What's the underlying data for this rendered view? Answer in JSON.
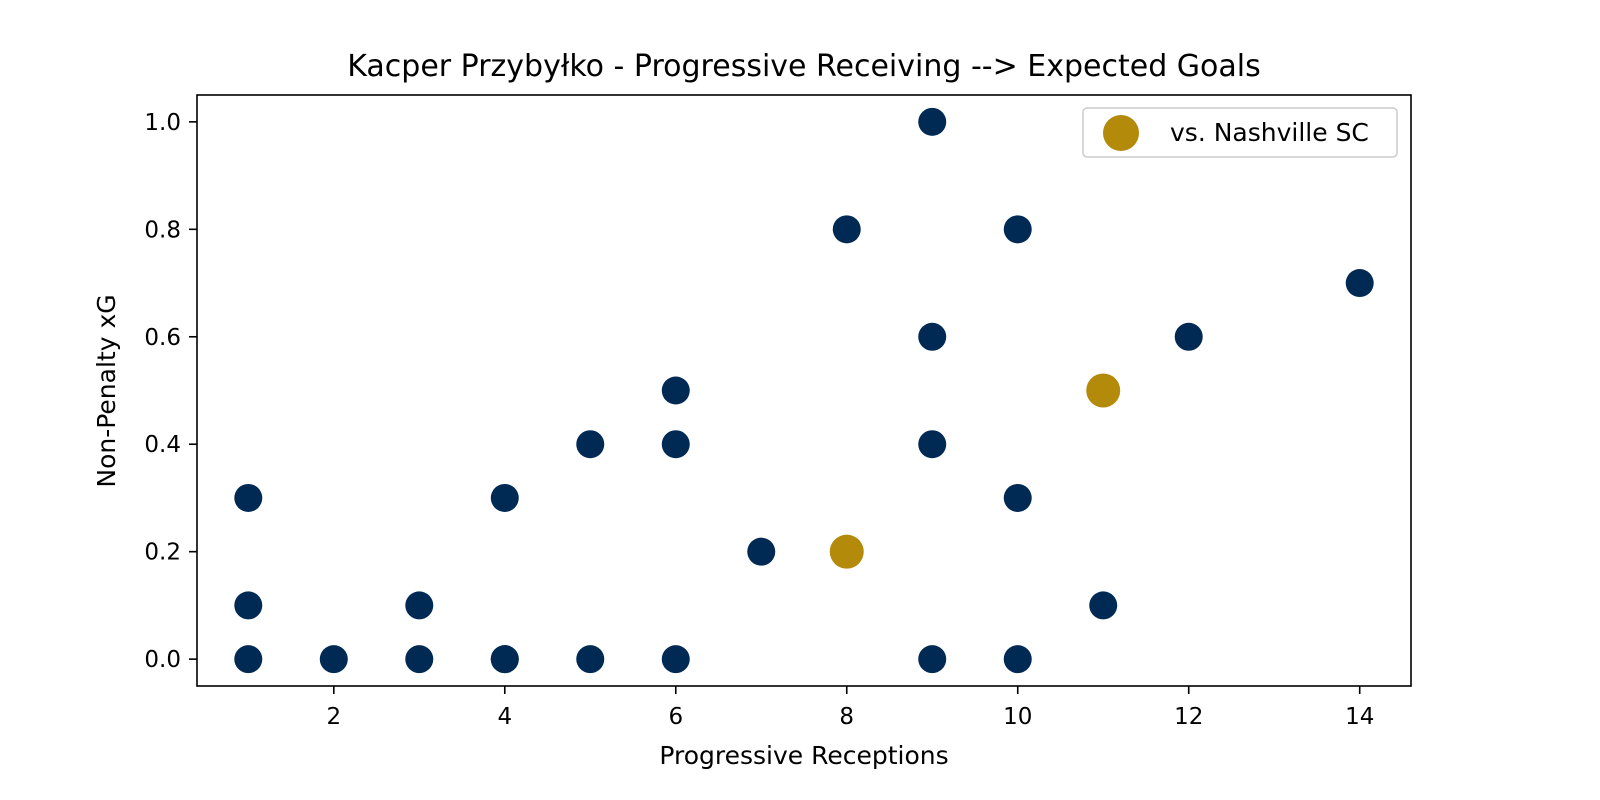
{
  "chart_data": {
    "type": "scatter",
    "title": "Kacper Przybyłko - Progressive Receiving --> Expected Goals",
    "xlabel": "Progressive Receptions",
    "ylabel": "Non-Penalty xG",
    "xlim": [
      0.4,
      14.6
    ],
    "ylim": [
      -0.05,
      1.05
    ],
    "xticks": [
      2,
      4,
      6,
      8,
      10,
      12,
      14
    ],
    "yticks": [
      0.0,
      0.2,
      0.4,
      0.6,
      0.8,
      1.0
    ],
    "xtick_labels": [
      "2",
      "4",
      "6",
      "8",
      "10",
      "12",
      "14"
    ],
    "ytick_labels": [
      "0.0",
      "0.2",
      "0.4",
      "0.6",
      "0.8",
      "1.0"
    ],
    "grid": false,
    "legend_position": "top-right",
    "series": [
      {
        "color": "#002a54",
        "points": [
          [
            1,
            0.0
          ],
          [
            1,
            0.1
          ],
          [
            1,
            0.3
          ],
          [
            2,
            0.0
          ],
          [
            3,
            0.0
          ],
          [
            3,
            0.1
          ],
          [
            4,
            0.0
          ],
          [
            4,
            0.0
          ],
          [
            4,
            0.3
          ],
          [
            5,
            0.0
          ],
          [
            5,
            0.4
          ],
          [
            6,
            0.0
          ],
          [
            6,
            0.4
          ],
          [
            6,
            0.5
          ],
          [
            7,
            0.2
          ],
          [
            8,
            0.8
          ],
          [
            9,
            0.0
          ],
          [
            9,
            0.4
          ],
          [
            9,
            0.6
          ],
          [
            9,
            1.0
          ],
          [
            10,
            0.0
          ],
          [
            10,
            0.3
          ],
          [
            10,
            0.8
          ],
          [
            11,
            0.1
          ],
          [
            12,
            0.6
          ],
          [
            14,
            0.7
          ]
        ]
      },
      {
        "name": "vs. Nashville SC",
        "color": "#b38a09",
        "highlight": true,
        "points": [
          [
            8,
            0.2
          ],
          [
            11,
            0.5
          ]
        ]
      }
    ]
  }
}
